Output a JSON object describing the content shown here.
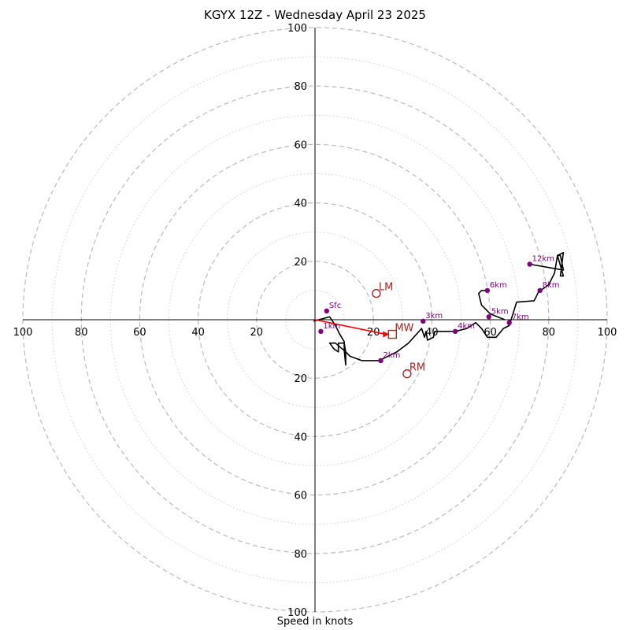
{
  "chart_data": {
    "type": "hodograph",
    "title": "KGYX 12Z - Wednesday April 23 2025",
    "xlabel": "Speed in knots",
    "range": [
      -100,
      100
    ],
    "ring_major": [
      20,
      40,
      60,
      80,
      100
    ],
    "ring_minor": [
      10,
      30,
      50,
      70,
      90
    ],
    "tick_labels": [
      "100",
      "80",
      "60",
      "40",
      "20",
      "20",
      "40",
      "60",
      "80",
      "100"
    ],
    "tick_values": [
      -100,
      -80,
      -60,
      -40,
      -20,
      20,
      40,
      60,
      80,
      100
    ],
    "colors": {
      "trace": "#000000",
      "markers": "#800080",
      "motion": "#b22222",
      "mean_wind_arrow": "#ff0000",
      "grid": "#bbbbbb"
    },
    "trace": [
      [
        -0.5,
        -0.5
      ],
      [
        5,
        1
      ],
      [
        7,
        -2
      ],
      [
        8.5,
        -5
      ],
      [
        10,
        -7.5
      ],
      [
        10,
        -10.5
      ],
      [
        10.5,
        -15.5
      ],
      [
        10.5,
        -11
      ],
      [
        7,
        -8
      ],
      [
        5,
        -8
      ],
      [
        6.5,
        -10
      ],
      [
        8,
        -11
      ],
      [
        8,
        -8
      ],
      [
        10,
        -8
      ],
      [
        10.5,
        -11
      ],
      [
        12,
        -12.5
      ],
      [
        16,
        -14
      ],
      [
        22,
        -14
      ],
      [
        28,
        -11
      ],
      [
        32,
        -8
      ],
      [
        36.5,
        -3
      ],
      [
        37.5,
        -6
      ],
      [
        38,
        -4
      ],
      [
        38.5,
        -7
      ],
      [
        40.5,
        -6
      ],
      [
        41,
        -4
      ],
      [
        43,
        -4
      ],
      [
        48,
        -4
      ],
      [
        52,
        -3
      ],
      [
        55,
        -1
      ],
      [
        57,
        -3
      ],
      [
        59,
        -6
      ],
      [
        62,
        -6
      ],
      [
        64.5,
        -3
      ],
      [
        66.5,
        -2
      ],
      [
        69,
        6
      ],
      [
        75,
        6.5
      ],
      [
        76.5,
        9.5
      ],
      [
        80,
        12
      ],
      [
        82,
        16
      ],
      [
        83,
        22
      ],
      [
        85,
        23
      ],
      [
        84,
        15
      ],
      [
        85,
        15
      ],
      [
        83,
        22
      ],
      [
        84,
        22
      ],
      [
        85,
        17
      ],
      [
        73.5,
        19
      ]
    ],
    "trace_branch": [
      [
        65,
        0
      ],
      [
        60,
        2
      ],
      [
        57,
        5
      ],
      [
        56,
        9
      ],
      [
        57,
        10
      ],
      [
        59,
        10
      ]
    ],
    "markers": [
      {
        "label": "Sfc",
        "u": 4,
        "v": 3
      },
      {
        "label": "1km",
        "u": 2,
        "v": -4
      },
      {
        "label": "2km",
        "u": 22.5,
        "v": -14
      },
      {
        "label": "3km",
        "u": 37,
        "v": -0.5
      },
      {
        "label": "4km",
        "u": 48,
        "v": -4
      },
      {
        "label": "5km",
        "u": 59.5,
        "v": 1
      },
      {
        "label": "6km",
        "u": 59,
        "v": 10
      },
      {
        "label": "7km",
        "u": 66.5,
        "v": -1
      },
      {
        "label": "8km",
        "u": 77,
        "v": 10
      },
      {
        "label": "12km",
        "u": 73.5,
        "v": 19
      }
    ],
    "storm_motion": [
      {
        "label": "LM",
        "u": 21,
        "v": 9,
        "shape": "circle"
      },
      {
        "label": "RM",
        "u": 31.5,
        "v": -18.5,
        "shape": "circle"
      },
      {
        "label": "MW",
        "u": 26.5,
        "v": -5,
        "shape": "square"
      }
    ]
  }
}
